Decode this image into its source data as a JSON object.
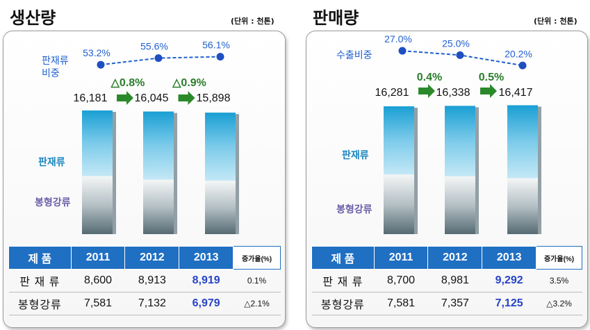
{
  "colors": {
    "header_bg": "#1f6fc2",
    "highlight_text": "#2743c7",
    "growth_green": "#2a7d2a",
    "ratio_blue": "#1f5fd0",
    "bar_top": "#1a9fd4",
    "bar_bottom": "#5a6e78"
  },
  "panels": [
    {
      "title": "생산량",
      "unit": "(단위 : 천톤)",
      "ratio_label": [
        "판재류",
        "비중"
      ],
      "segment_labels": {
        "top": "판재류",
        "bottom": "봉형강류"
      },
      "growth_labels": [
        "△0.8%",
        "△0.9%"
      ],
      "table": {
        "headers": [
          "제  품",
          "2011",
          "2012",
          "2013",
          "증가율(%)"
        ],
        "rows": [
          {
            "label": "판 재 류",
            "values": [
              "8,600",
              "8,913",
              "8,919"
            ],
            "rate": "0.1%"
          },
          {
            "label": "봉형강류",
            "values": [
              "7,581",
              "7,132",
              "6,979"
            ],
            "rate": "△2.1%"
          }
        ]
      },
      "chart_data": {
        "type": "bar",
        "stacked": true,
        "categories": [
          "2011",
          "2012",
          "2013"
        ],
        "totals": [
          16181,
          16045,
          15898
        ],
        "total_labels": [
          "16,181",
          "16,045",
          "15,898"
        ],
        "series": [
          {
            "name": "판재류",
            "values": [
              8600,
              8913,
              8919
            ]
          },
          {
            "name": "봉형강류",
            "values": [
              7581,
              7132,
              6979
            ]
          }
        ],
        "ratio_series": {
          "values": [
            53.2,
            55.6,
            56.1
          ],
          "labels": [
            "53.2%",
            "55.6%",
            "56.1%"
          ]
        }
      }
    },
    {
      "title": "판매량",
      "unit": "(단위 : 천톤)",
      "ratio_label": [
        "수출비중"
      ],
      "segment_labels": {
        "top": "판재류",
        "bottom": "봉형강류"
      },
      "growth_labels": [
        "0.4%",
        "0.5%"
      ],
      "table": {
        "headers": [
          "제  품",
          "2011",
          "2012",
          "2013",
          "증가율(%)"
        ],
        "rows": [
          {
            "label": "판 재 류",
            "values": [
              "8,700",
              "8,981",
              "9,292"
            ],
            "rate": "3.5%"
          },
          {
            "label": "봉형강류",
            "values": [
              "7,581",
              "7,357",
              "7,125"
            ],
            "rate": "△3.2%"
          }
        ]
      },
      "chart_data": {
        "type": "bar",
        "stacked": true,
        "categories": [
          "2011",
          "2012",
          "2013"
        ],
        "totals": [
          16281,
          16338,
          16417
        ],
        "total_labels": [
          "16,281",
          "16,338",
          "16,417"
        ],
        "series": [
          {
            "name": "판재류",
            "values": [
              8700,
              8981,
              9292
            ]
          },
          {
            "name": "봉형강류",
            "values": [
              7581,
              7357,
              7125
            ]
          }
        ],
        "ratio_series": {
          "values": [
            27.0,
            25.0,
            20.2
          ],
          "labels": [
            "27.0%",
            "25.0%",
            "20.2%"
          ]
        }
      }
    }
  ]
}
